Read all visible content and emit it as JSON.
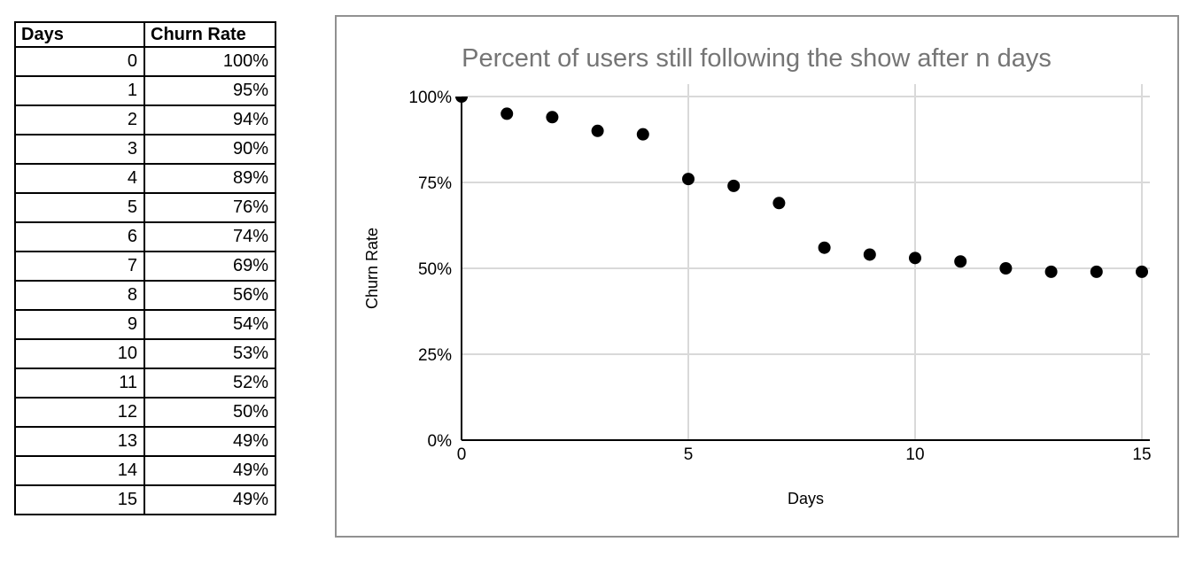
{
  "table": {
    "headers": [
      "Days",
      "Churn Rate"
    ],
    "rows": [
      [
        "0",
        "100%"
      ],
      [
        "1",
        "95%"
      ],
      [
        "2",
        "94%"
      ],
      [
        "3",
        "90%"
      ],
      [
        "4",
        "89%"
      ],
      [
        "5",
        "76%"
      ],
      [
        "6",
        "74%"
      ],
      [
        "7",
        "69%"
      ],
      [
        "8",
        "56%"
      ],
      [
        "9",
        "54%"
      ],
      [
        "10",
        "53%"
      ],
      [
        "11",
        "52%"
      ],
      [
        "12",
        "50%"
      ],
      [
        "13",
        "49%"
      ],
      [
        "14",
        "49%"
      ],
      [
        "15",
        "49%"
      ]
    ]
  },
  "chart_data": {
    "type": "scatter",
    "title": "Percent of users still following the show after n days",
    "xlabel": "Days",
    "ylabel": "Churn Rate",
    "x": [
      0,
      1,
      2,
      3,
      4,
      5,
      6,
      7,
      8,
      9,
      10,
      11,
      12,
      13,
      14,
      15
    ],
    "y": [
      100,
      95,
      94,
      90,
      89,
      76,
      74,
      69,
      56,
      54,
      53,
      52,
      50,
      49,
      49,
      49
    ],
    "xlim": [
      0,
      15
    ],
    "ylim": [
      0,
      100
    ],
    "xticks": [
      0,
      5,
      10,
      15
    ],
    "yticks": [
      0,
      25,
      50,
      75,
      100
    ],
    "ytick_suffix": "%",
    "grid": true,
    "legend_position": "none",
    "colors": {
      "point": "#000000",
      "title": "#757575",
      "gridline": "#d9d9d9",
      "axis": "#000000",
      "tick_label": "#000000",
      "panel_border": "#919191"
    }
  }
}
